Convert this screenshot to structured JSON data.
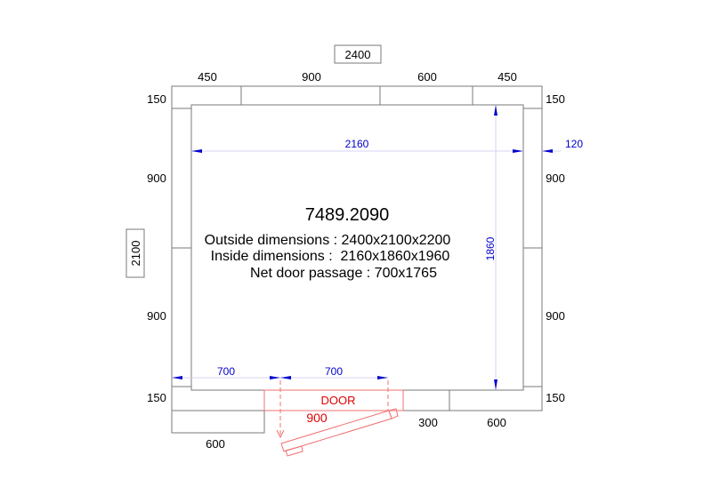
{
  "drawing": {
    "overall_width": "2400",
    "overall_depth": "2100",
    "top_panels": [
      "450",
      "900",
      "600",
      "450"
    ],
    "left_panels": [
      "150",
      "900",
      "900",
      "150"
    ],
    "right_panels": [
      "150",
      "900",
      "900",
      "150"
    ],
    "wall_thickness": "120",
    "inside_width": "2160",
    "inside_depth": "1860",
    "bottom_left_panel": "600",
    "bottom_right_panels": [
      "300",
      "600"
    ],
    "door_offset": "700",
    "door_opening": "700",
    "door_label": "DOOR",
    "door_width": "900",
    "model_code": "7489.2090",
    "outside_dimensions": "Outside dimensions : 2400x2100x2200",
    "inside_dimensions": "Inside dimensions :  2160x1860x1960",
    "net_door_passage": "Net door passage : 700x1765",
    "colors": {
      "outline": "#7a7a7a",
      "dimension": "#0000cc",
      "door": "#e00000"
    }
  }
}
